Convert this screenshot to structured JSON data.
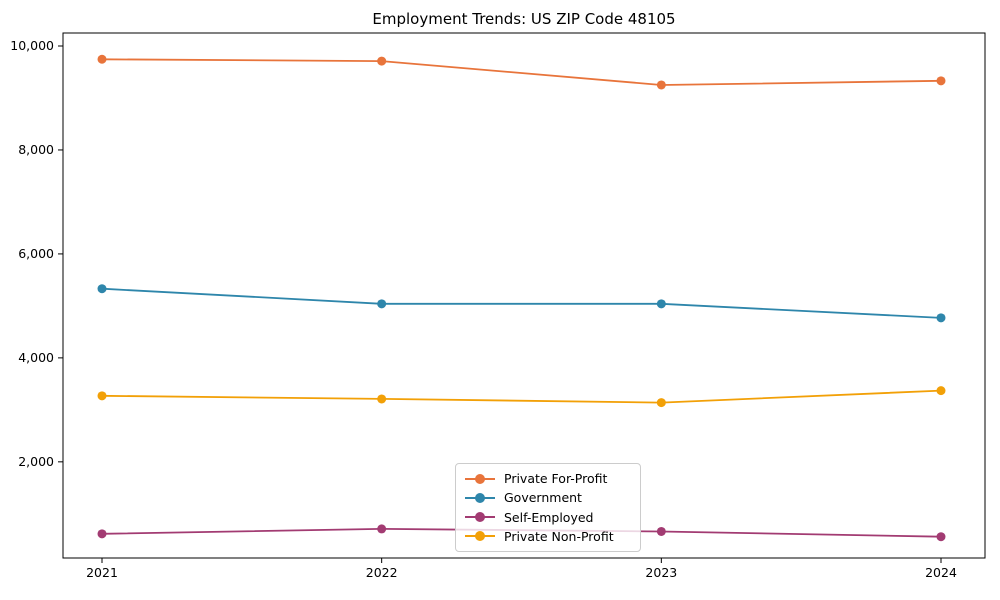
{
  "chart_data": {
    "type": "line",
    "title": "Employment Trends: US ZIP Code 48105",
    "xlabel": "",
    "ylabel": "",
    "x": [
      2021,
      2022,
      2023,
      2024
    ],
    "xticklabels": [
      "2021",
      "2022",
      "2023",
      "2024"
    ],
    "yticks": [
      2000,
      4000,
      6000,
      8000,
      10000
    ],
    "yticklabels": [
      "2,000",
      "4,000",
      "6,000",
      "8,000",
      "10,000"
    ],
    "ylim": [
      150,
      10250
    ],
    "grid": false,
    "legend_position": "lower center",
    "series": [
      {
        "name": "Private For-Profit",
        "color": "#e8743b",
        "values": [
          9745,
          9710,
          9250,
          9330
        ]
      },
      {
        "name": "Government",
        "color": "#2e86ab",
        "values": [
          5330,
          5040,
          5040,
          4770
        ]
      },
      {
        "name": "Self-Employed",
        "color": "#a23b72",
        "values": [
          615,
          710,
          660,
          560
        ]
      },
      {
        "name": "Private Non-Profit",
        "color": "#f2a007",
        "values": [
          3270,
          3210,
          3140,
          3370
        ]
      }
    ]
  }
}
